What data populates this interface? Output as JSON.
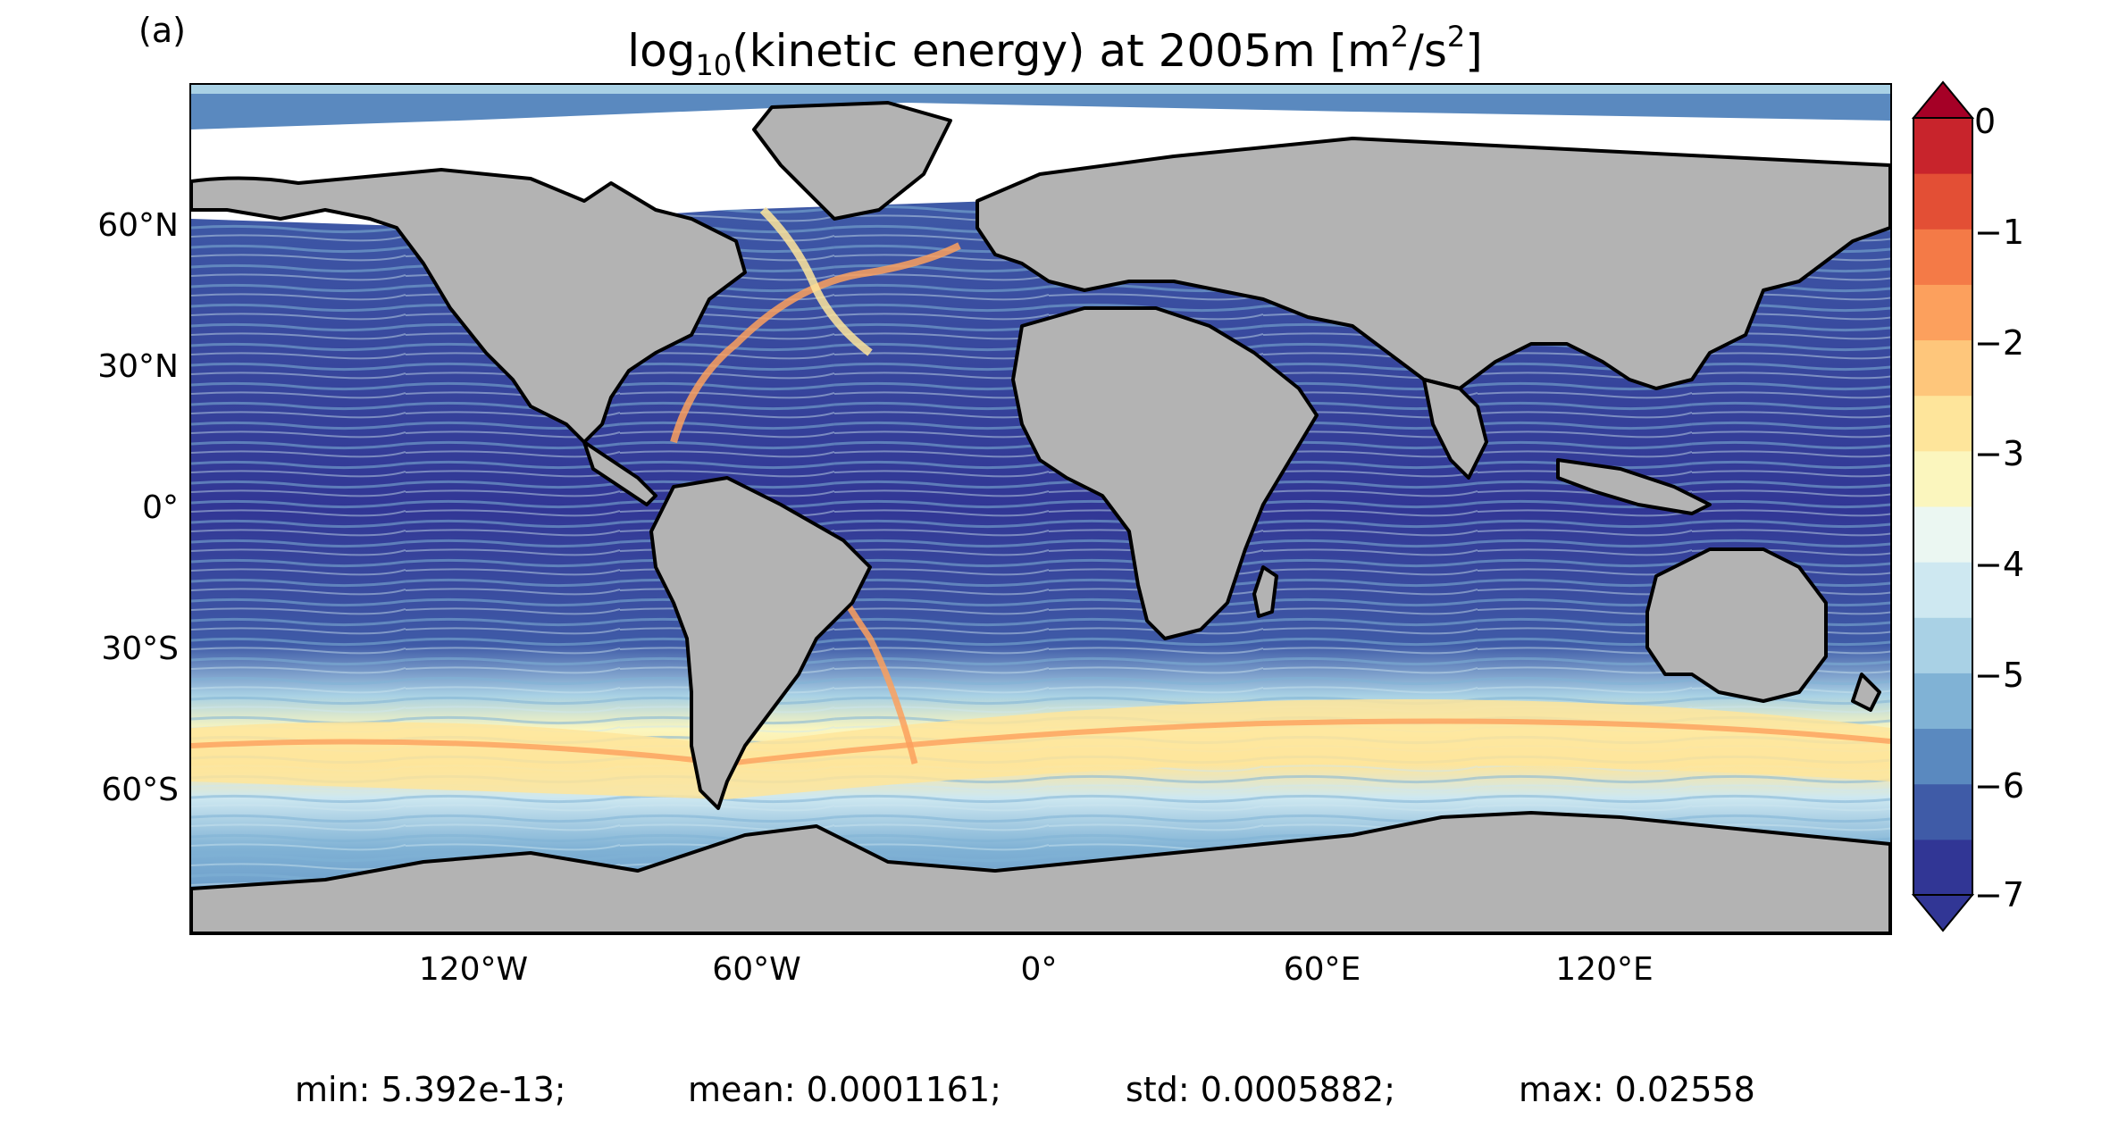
{
  "panel_label": "(a)",
  "title": {
    "prefix": "log",
    "subscript": "10",
    "middle": "(kinetic energy) at 2005m [m",
    "sup1": "2",
    "middle2": "/s",
    "sup2": "2",
    "suffix": "]"
  },
  "latitude_labels": [
    "60°N",
    "30°N",
    "0°",
    "30°S",
    "60°S"
  ],
  "longitude_labels": [
    "120°W",
    "60°W",
    "0°",
    "60°E",
    "120°E"
  ],
  "colorbar": {
    "ticks": [
      "0",
      "−1",
      "−2",
      "−3",
      "−4",
      "−5",
      "−6",
      "−7"
    ],
    "range": [
      -7,
      0
    ],
    "extend": "both",
    "colormap": "RdYlBu_r",
    "colors": [
      "#313695",
      "#3f5ba7",
      "#5a89bf",
      "#80b2d5",
      "#a9d1e5",
      "#cee8f1",
      "#ebf7f2",
      "#fbf6be",
      "#fee59b",
      "#fec67b",
      "#fca05d",
      "#f47a47",
      "#e34f35",
      "#c8242c",
      "#a50026"
    ]
  },
  "land_color": "#b3b3b3",
  "stats": {
    "min": "min: 5.392e-13;",
    "mean": "mean: 0.0001161;",
    "std": "std: 0.0005882;",
    "max": "max: 0.02558"
  }
}
